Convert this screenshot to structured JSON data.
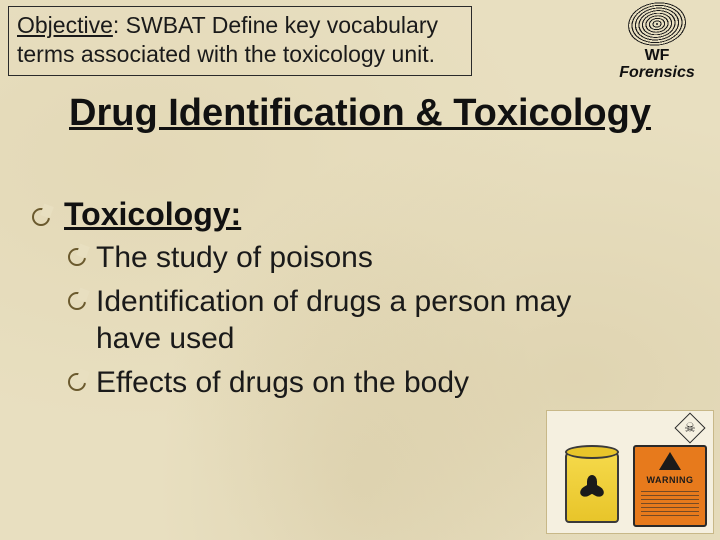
{
  "objective": {
    "label": "Objective",
    "text": ": SWBAT Define key vocabulary terms associated with the toxicology unit."
  },
  "logo": {
    "line1": "WF",
    "line2": "Forensics"
  },
  "title": "Drug Identification & Toxicology",
  "term": {
    "heading": "Toxicology:",
    "points": [
      "The study of poisons",
      "Identification of drugs a person may have used",
      "Effects of drugs on the body"
    ]
  },
  "hazmat": {
    "warning_label": "WARNING"
  },
  "colors": {
    "background": "#e8dfc0",
    "text": "#1a1a1a",
    "bullet_border": "#6b5a2e",
    "warning_sign": "#e77a1c",
    "barrel": "#e8c52a"
  }
}
